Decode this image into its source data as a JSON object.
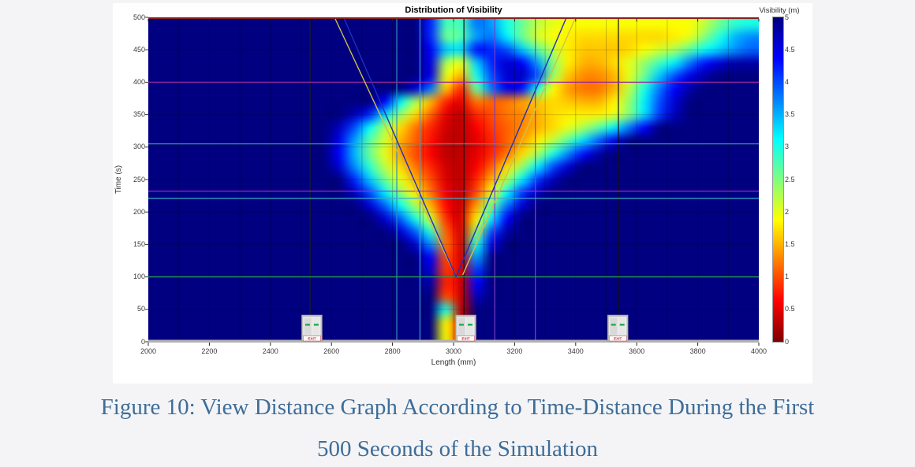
{
  "caption": {
    "line1": "Figure 10: View Distance Graph According to Time-Distance During the First",
    "line2": "500 Seconds of the Simulation"
  },
  "chart_data": {
    "type": "heatmap",
    "title": "Distribution of Visibility",
    "xlabel": "Length (mm)",
    "ylabel": "Time (s)",
    "x_range": [
      2000,
      4000
    ],
    "y_range": [
      0,
      500
    ],
    "x_ticks": [
      "2000",
      "2200",
      "2400",
      "2600",
      "2800",
      "3000",
      "3200",
      "3400",
      "3600",
      "3800",
      "4000"
    ],
    "y_ticks": [
      "0",
      "50",
      "100",
      "150",
      "200",
      "250",
      "300",
      "350",
      "400",
      "450",
      "500"
    ],
    "colorbar": {
      "label": "Visibility (m)",
      "min": 0,
      "max": 5,
      "colormap": "jet_reversed",
      "ticks": [
        "5",
        "4.5",
        "4",
        "3.5",
        "3",
        "2.5",
        "2",
        "1.5",
        "1",
        "0.5",
        "0"
      ]
    },
    "grid": {
      "cols": 40,
      "rows": 25,
      "base": 5,
      "x_start_mm": 2000,
      "dx_mm": 50,
      "t_start_s": 500,
      "dt_s": -20,
      "cells": [
        [
          0,
          18,
          [
            4.2,
            2.8,
            2.8,
            3.8,
            3.6,
            3.0,
            2.6,
            2.2,
            2.0,
            1.9,
            1.9,
            1.9,
            1.9,
            1.9,
            1.9,
            1.9,
            1.9,
            1.9,
            2.2,
            2.6,
            2.9,
            3.0
          ]
        ],
        [
          1,
          18,
          [
            4.2,
            2.6,
            2.7,
            3.6,
            3.8,
            3.2,
            2.6,
            2.1,
            1.9,
            1.8,
            1.7,
            1.7,
            1.7,
            1.7,
            1.7,
            1.7,
            1.8,
            2.0,
            2.5,
            3.0,
            3.5,
            3.7
          ]
        ],
        [
          2,
          18,
          [
            4.4,
            3.4,
            3.3,
            4.3,
            4.2,
            4.0,
            3.4,
            2.7,
            2.2,
            1.8,
            1.6,
            1.6,
            1.6,
            1.7,
            1.9,
            2.1,
            2.3,
            2.7,
            3.1,
            3.4,
            3.7,
            3.9
          ]
        ],
        [
          3,
          18,
          [
            4.5,
            2.3,
            2.0,
            3.4,
            4.2,
            4.6,
            4.4,
            3.6,
            2.5,
            1.8,
            1.5,
            1.5,
            1.7,
            2.0,
            2.4,
            2.8,
            3.2,
            3.8,
            4.3,
            4.6,
            4.8,
            4.8
          ]
        ],
        [
          4,
          18,
          [
            4.5,
            2.0,
            1.5,
            3.0,
            4.0,
            4.6,
            4.7,
            4.0,
            2.4,
            1.6,
            1.3,
            1.3,
            1.5,
            2.0,
            2.6,
            3.4,
            4.0,
            4.5,
            4.8
          ]
        ],
        [
          5,
          17,
          [
            4.6,
            3.8,
            1.6,
            0.8,
            2.6,
            3.8,
            4.5,
            4.3,
            3.0,
            1.9,
            1.4,
            1.2,
            1.2,
            1.5,
            2.2,
            3.0,
            3.8,
            4.4,
            4.8
          ]
        ],
        [
          6,
          15,
          [
            4.4,
            3.2,
            2.3,
            1.5,
            0.8,
            0.5,
            1.2,
            1.1,
            1.2,
            1.4,
            1.6,
            1.7,
            1.6,
            1.5,
            1.5,
            1.8,
            2.4,
            3.2,
            4.0,
            4.6
          ]
        ],
        [
          7,
          13,
          [
            4.7,
            4.2,
            3.3,
            2.4,
            1.7,
            1.1,
            0.5,
            0.3,
            0.8,
            1.0,
            1.2,
            1.3,
            1.5,
            1.7,
            1.8,
            1.8,
            1.8,
            2.0,
            2.5,
            3.3,
            4.1,
            4.7
          ]
        ],
        [
          8,
          12,
          [
            4.7,
            4.0,
            3.1,
            2.3,
            1.7,
            1.2,
            0.8,
            0.4,
            0.3,
            0.6,
            0.9,
            1.1,
            1.3,
            1.5,
            1.7,
            2.0,
            2.3,
            2.7,
            3.2,
            3.8,
            4.4
          ]
        ],
        [
          9,
          12,
          [
            4.5,
            3.6,
            2.7,
            2.1,
            1.5,
            1.1,
            0.7,
            0.35,
            0.3,
            0.5,
            0.8,
            1.1,
            1.4,
            1.8,
            2.2,
            2.7,
            3.3,
            3.9,
            4.5
          ]
        ],
        [
          10,
          12,
          [
            4.4,
            3.5,
            2.6,
            2.0,
            1.4,
            1.0,
            0.6,
            0.3,
            0.3,
            0.5,
            0.8,
            1.2,
            1.7,
            2.3,
            3.0,
            3.7,
            4.3,
            4.8
          ]
        ],
        [
          11,
          12,
          [
            4.6,
            3.7,
            2.9,
            2.2,
            1.7,
            1.2,
            0.8,
            0.4,
            0.3,
            0.6,
            1.1,
            1.7,
            2.4,
            3.2,
            4.0,
            4.6
          ]
        ],
        [
          12,
          13,
          [
            4.2,
            3.4,
            2.6,
            2.0,
            1.5,
            1.0,
            0.45,
            0.3,
            0.8,
            1.5,
            2.3,
            3.2,
            4.1,
            4.7
          ]
        ],
        [
          13,
          13,
          [
            4.7,
            4.0,
            3.2,
            2.4,
            1.8,
            1.2,
            0.55,
            0.3,
            1.0,
            2.0,
            3.1,
            4.1,
            4.7
          ]
        ],
        [
          14,
          14,
          [
            4.6,
            3.9,
            3.1,
            2.3,
            1.5,
            0.65,
            0.35,
            1.4,
            2.6,
            3.8,
            4.6
          ]
        ],
        [
          15,
          15,
          [
            4.6,
            3.9,
            3.0,
            2.1,
            0.85,
            0.4,
            1.8,
            3.2,
            4.4
          ]
        ],
        [
          16,
          16,
          [
            4.6,
            3.9,
            2.9,
            1.1,
            0.4,
            2.4,
            4.0,
            4.8
          ]
        ],
        [
          17,
          17,
          [
            4.6,
            3.7,
            1.2,
            0.4,
            3.0,
            4.5
          ]
        ],
        [
          18,
          18,
          [
            4.4,
            1.0,
            0.4,
            3.6
          ]
        ],
        [
          19,
          18,
          [
            4.6,
            0.9,
            0.4,
            4.1
          ]
        ],
        [
          20,
          18,
          [
            4.8,
            0.8,
            0.35,
            4.4
          ]
        ],
        [
          21,
          19,
          [
            1.0,
            0.35,
            4.7
          ]
        ],
        [
          22,
          19,
          [
            3.0,
            0.3
          ]
        ],
        [
          23,
          19,
          [
            1.9,
            0.3
          ]
        ],
        [
          24,
          19,
          [
            1.9,
            0.3
          ]
        ]
      ]
    },
    "overlay_lines": {
      "horizontals": [
        {
          "t": 400,
          "color": "#9a27a0"
        },
        {
          "t": 305,
          "color": "#2fa0a8"
        },
        {
          "t": 232,
          "color": "#a431c4"
        },
        {
          "t": 221,
          "color": "#35b0c8"
        },
        {
          "t": 100,
          "color": "#27a34d"
        }
      ],
      "verticals": [
        {
          "x": 2530,
          "color": "#1c1c1c"
        },
        {
          "x": 2814,
          "color": "#2f8fb8"
        },
        {
          "x": 2890,
          "color": "#3f9fc8"
        },
        {
          "x": 3034,
          "color": "#111111"
        },
        {
          "x": 3135,
          "color": "#7c3cc8"
        },
        {
          "x": 3268,
          "color": "#a431c4"
        },
        {
          "x": 3540,
          "color": "#111111"
        }
      ],
      "diagonals": [
        {
          "pts": [
            [
              2610,
              500
            ],
            [
              3005,
              103
            ]
          ],
          "color": "#cfc14a"
        },
        {
          "pts": [
            [
              3030,
              103
            ],
            [
              3400,
              500
            ]
          ],
          "color": "#cfc14a"
        },
        {
          "pts": [
            [
              2640,
              500
            ],
            [
              3008,
              100
            ]
          ],
          "color": "#1f2fbb"
        },
        {
          "pts": [
            [
              3008,
              100
            ],
            [
              3370,
              500
            ]
          ],
          "color": "#1f2fbb"
        }
      ],
      "top_border_color": "#8b1f1f",
      "axis_bar_color": "#b3b3b3"
    },
    "exit_markers": [
      {
        "x_mm": 2536,
        "label": "EXIT"
      },
      {
        "x_mm": 3040,
        "label": "EXIT"
      },
      {
        "x_mm": 3538,
        "label": "EXIT"
      }
    ]
  }
}
